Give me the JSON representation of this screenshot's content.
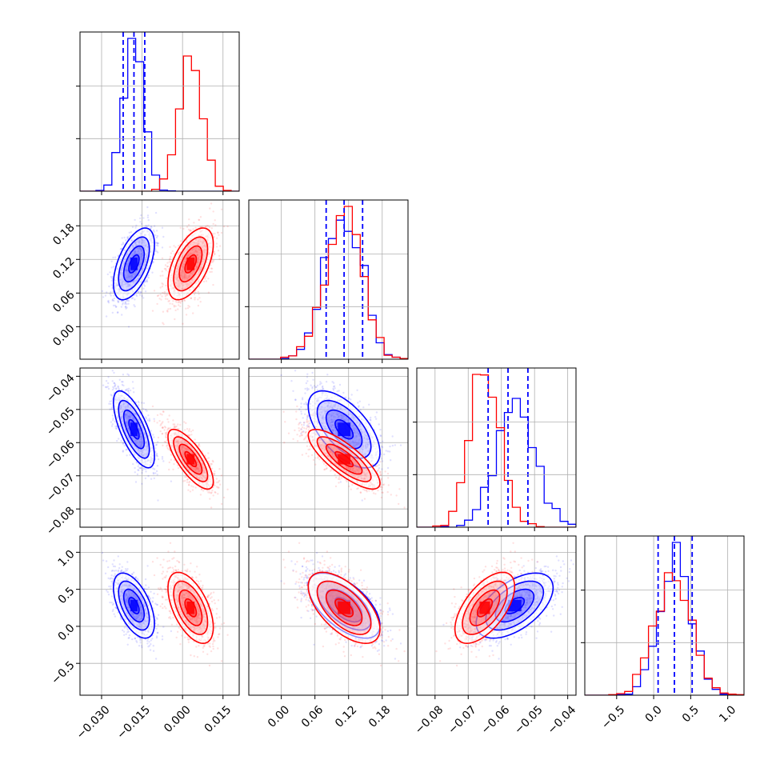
{
  "chart_data": {
    "type": "corner",
    "parameters": [
      {
        "id": "p1",
        "range": [
          -0.038,
          0.021
        ],
        "ticks": [
          -0.03,
          -0.015,
          0.0,
          0.015
        ],
        "tick_labels": [
          "−0.030",
          "−0.015",
          "0.000",
          "0.015"
        ]
      },
      {
        "id": "p2",
        "range": [
          -0.058,
          0.226
        ],
        "ticks": [
          0.0,
          0.06,
          0.12,
          0.18
        ],
        "tick_labels": [
          "0.00",
          "0.06",
          "0.12",
          "0.18"
        ]
      },
      {
        "id": "p3",
        "range": [
          -0.0855,
          -0.0375
        ],
        "ticks": [
          -0.08,
          -0.07,
          -0.06,
          -0.05,
          -0.04
        ],
        "tick_labels": [
          "−0.08",
          "−0.07",
          "−0.06",
          "−0.05",
          "−0.04"
        ]
      },
      {
        "id": "p4",
        "range": [
          -0.93,
          1.22
        ],
        "ticks": [
          -0.5,
          0.0,
          0.5,
          1.0
        ],
        "tick_labels": [
          "−0.5",
          "0.0",
          "0.5",
          "1.0"
        ]
      }
    ],
    "series": [
      {
        "color": "#0000ff",
        "mean": [
          -0.018,
          0.112,
          -0.056,
          0.28
        ],
        "std": [
          0.0038,
          0.032,
          0.0058,
          0.22
        ],
        "corr": {
          "0-1": 0.55,
          "0-2": -0.7,
          "0-3": -0.55,
          "1-2": -0.6,
          "1-3": -0.6,
          "2-3": 0.55
        },
        "quantiles": [
          [
            -0.022,
            -0.018,
            -0.014
          ],
          [
            0.08,
            0.112,
            0.145
          ],
          [
            -0.064,
            -0.058,
            -0.052
          ],
          [
            0.06,
            0.28,
            0.52
          ]
        ]
      },
      {
        "color": "#ff0000",
        "mean": [
          0.003,
          0.112,
          -0.065,
          0.25
        ],
        "std": [
          0.0042,
          0.032,
          0.0045,
          0.24
        ],
        "corr": {
          "0-1": 0.55,
          "0-2": -0.75,
          "0-3": -0.55,
          "1-2": -0.8,
          "1-3": -0.6,
          "2-3": 0.6
        },
        "quantiles": []
      }
    ],
    "grid": true,
    "quantile_line_color": "#0000ff"
  }
}
